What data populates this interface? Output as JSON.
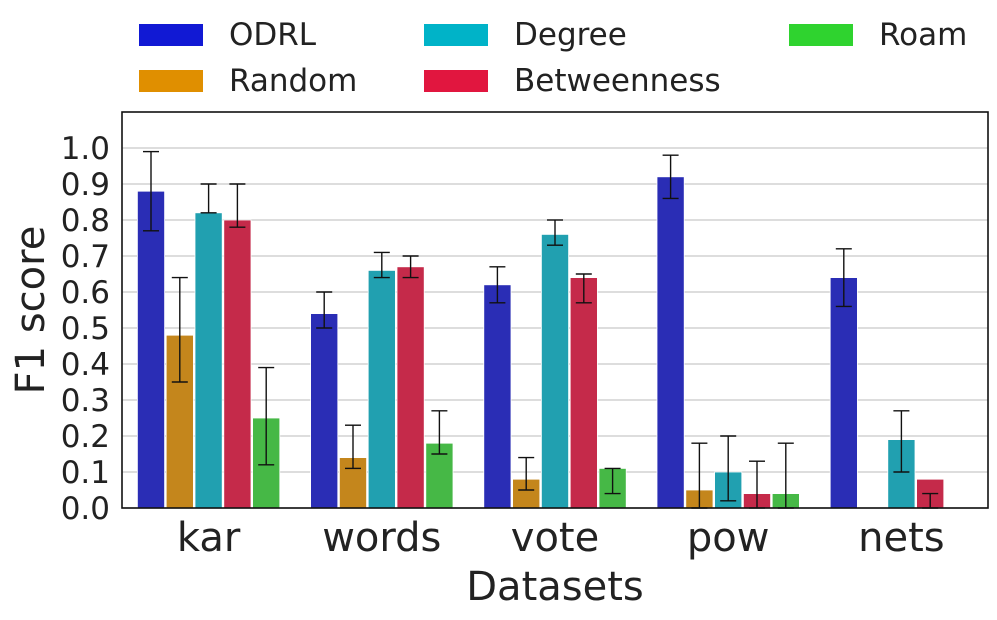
{
  "chart_data": {
    "type": "bar",
    "title": "",
    "xlabel": "Datasets",
    "ylabel": "F1 score",
    "ylim": [
      0,
      1.1
    ],
    "yticks": [
      0.0,
      0.1,
      0.2,
      0.3,
      0.4,
      0.5,
      0.6,
      0.7,
      0.8,
      0.9,
      1.0
    ],
    "ytick_labels": [
      "0.0",
      "0.1",
      "0.2",
      "0.3",
      "0.4",
      "0.5",
      "0.6",
      "0.7",
      "0.8",
      "0.9",
      "1.0"
    ],
    "grid": true,
    "legend_position": "top",
    "categories": [
      "kar",
      "words",
      "vote",
      "pow",
      "nets"
    ],
    "series": [
      {
        "name": "ODRL",
        "legend_color": "#1119d4",
        "color": "#2a2db5",
        "values": [
          0.88,
          0.54,
          0.62,
          0.92,
          0.64
        ],
        "err_low": [
          0.77,
          0.5,
          0.57,
          0.86,
          0.56
        ],
        "err_high": [
          0.99,
          0.6,
          0.67,
          0.98,
          0.72
        ]
      },
      {
        "name": "Random",
        "legend_color": "#e08f00",
        "color": "#c4861c",
        "values": [
          0.48,
          0.14,
          0.08,
          0.05,
          0.0
        ],
        "err_low": [
          0.35,
          0.11,
          0.05,
          0.0,
          null
        ],
        "err_high": [
          0.64,
          0.23,
          0.14,
          0.18,
          null
        ]
      },
      {
        "name": "Degree",
        "legend_color": "#00b3c8",
        "color": "#21a0b0",
        "values": [
          0.82,
          0.66,
          0.76,
          0.1,
          0.19
        ],
        "err_low": [
          0.82,
          0.64,
          0.73,
          0.02,
          0.1
        ],
        "err_high": [
          0.9,
          0.71,
          0.8,
          0.2,
          0.27
        ]
      },
      {
        "name": "Betweenness",
        "legend_color": "#e1163f",
        "color": "#c52a4a",
        "values": [
          0.8,
          0.67,
          0.64,
          0.04,
          0.08
        ],
        "err_low": [
          0.78,
          0.64,
          0.57,
          0.0,
          0.0
        ],
        "err_high": [
          0.9,
          0.7,
          0.65,
          0.13,
          0.04
        ]
      },
      {
        "name": "Roam",
        "legend_color": "#2fd32f",
        "color": "#46b846",
        "values": [
          0.25,
          0.18,
          0.11,
          0.04,
          0.0
        ],
        "err_low": [
          0.12,
          0.15,
          0.04,
          0.0,
          null
        ],
        "err_high": [
          0.39,
          0.27,
          0.11,
          0.18,
          null
        ]
      }
    ]
  }
}
